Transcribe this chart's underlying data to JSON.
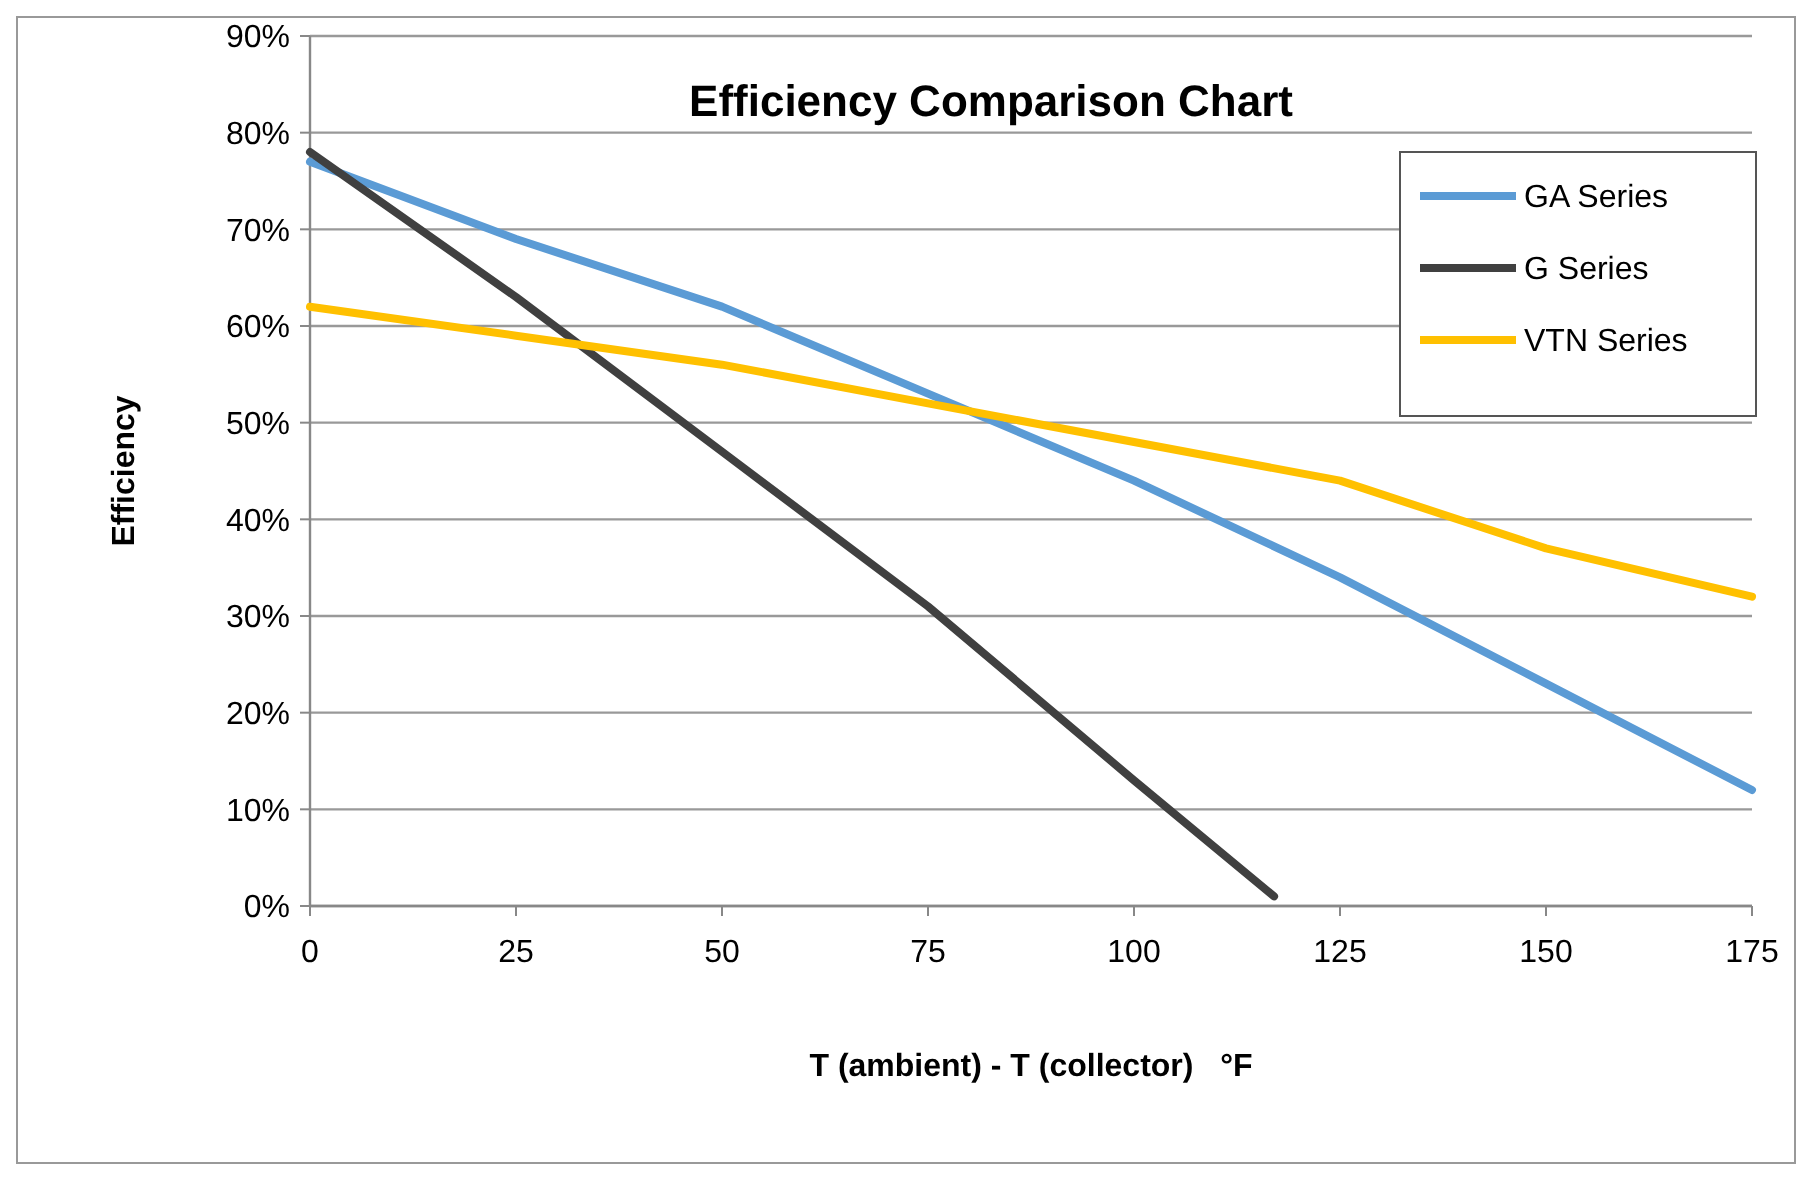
{
  "chart_data": {
    "type": "line",
    "title": "Efficiency Comparison Chart",
    "xlabel": "T (ambient) - T (collector)   °F",
    "ylabel": "Efficiency",
    "xlim": [
      0,
      175
    ],
    "xticks": [
      0,
      25,
      50,
      75,
      100,
      125,
      150,
      175
    ],
    "ylim": [
      0,
      90
    ],
    "yticks": [
      {
        "value": 0,
        "label": "0%"
      },
      {
        "value": 10,
        "label": "10%"
      },
      {
        "value": 20,
        "label": "20%"
      },
      {
        "value": 30,
        "label": "30%"
      },
      {
        "value": 40,
        "label": "40%"
      },
      {
        "value": 50,
        "label": "50%"
      },
      {
        "value": 60,
        "label": "60%"
      },
      {
        "value": 70,
        "label": "70%"
      },
      {
        "value": 80,
        "label": "80%"
      },
      {
        "value": 90,
        "label": "90%"
      }
    ],
    "grid": "y",
    "legend": "top right",
    "marker": "none",
    "line_style": "solid",
    "series": [
      {
        "name": "GA Series",
        "color": "#5b9bd5",
        "x": [
          0,
          25,
          50,
          75,
          100,
          125,
          150,
          175
        ],
        "values": [
          77,
          69,
          62,
          53,
          44,
          34,
          23,
          12
        ]
      },
      {
        "name": "G Series",
        "color": "#404040",
        "x": [
          0,
          25,
          50,
          75,
          100,
          117
        ],
        "values": [
          78,
          63,
          47,
          31,
          13,
          1
        ]
      },
      {
        "name": "VTN Series",
        "color": "#ffc000",
        "x": [
          0,
          25,
          50,
          75,
          100,
          125,
          150,
          175
        ],
        "values": [
          62,
          59,
          56,
          52,
          48,
          44,
          37,
          32
        ]
      }
    ]
  }
}
